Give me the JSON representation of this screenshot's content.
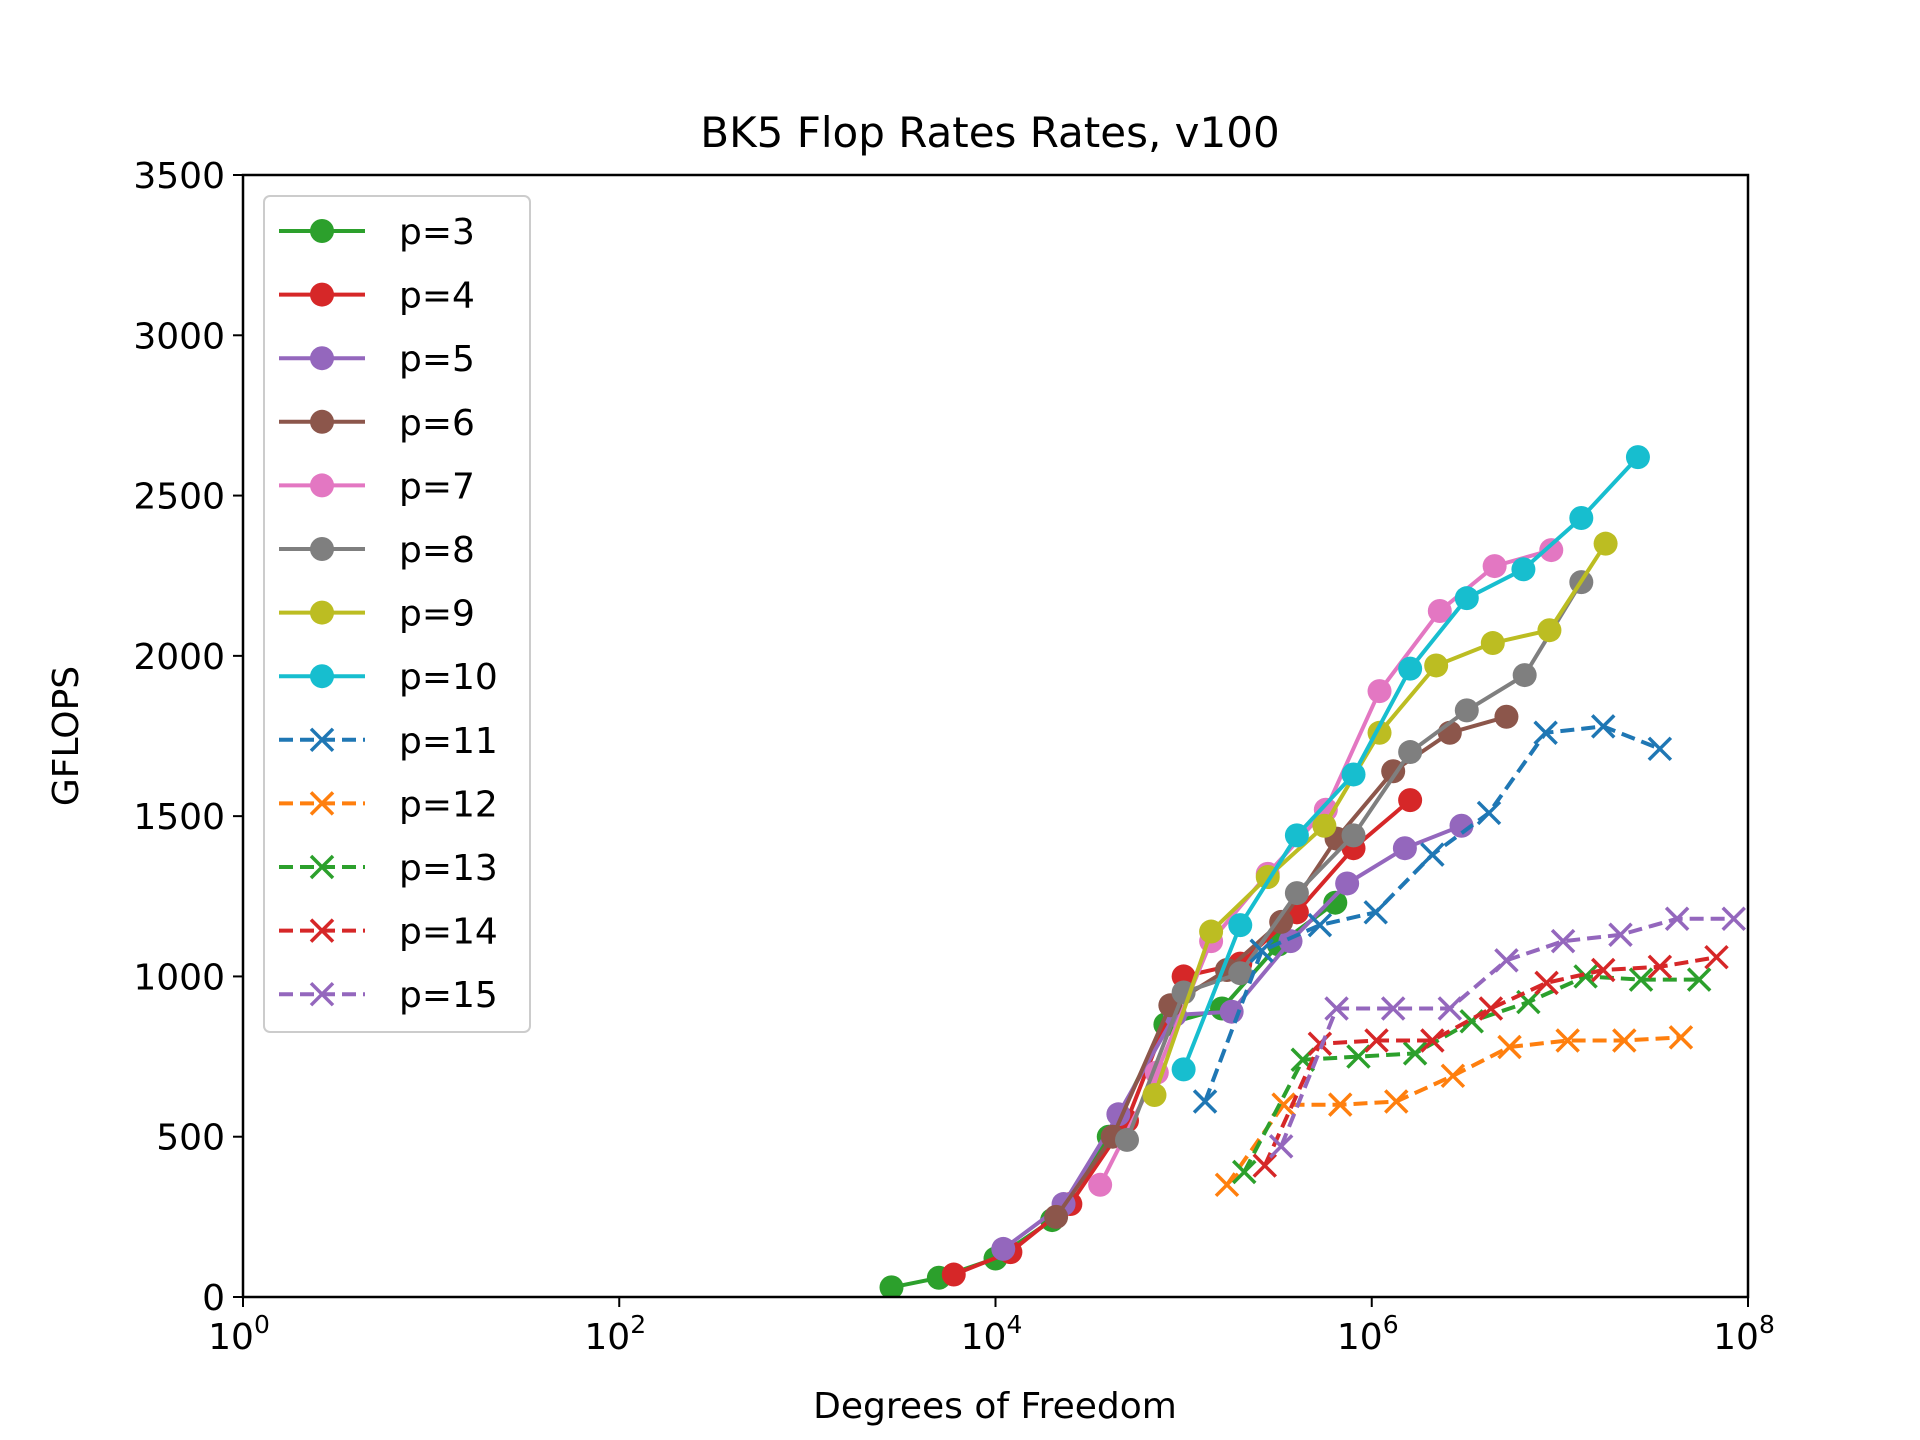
{
  "chart_data": {
    "type": "line",
    "title": "BK5 Flop Rates Rates, v100",
    "xlabel": "Degrees of Freedom",
    "ylabel": "GFLOPS",
    "xscale": "log",
    "xlim": [
      1,
      100000000
    ],
    "ylim": [
      0,
      3500
    ],
    "grid": false,
    "legend_position": "upper-left",
    "x_ticks": [
      {
        "base": "10",
        "exp": "0"
      },
      {
        "base": "10",
        "exp": "2"
      },
      {
        "base": "10",
        "exp": "4"
      },
      {
        "base": "10",
        "exp": "6"
      },
      {
        "base": "10",
        "exp": "8"
      }
    ],
    "y_ticks": [
      "0",
      "500",
      "1000",
      "1500",
      "2000",
      "2500",
      "3000",
      "3500"
    ],
    "series": [
      {
        "name": "p=3",
        "color": "#2ca02c",
        "marker": "circle",
        "linestyle": "solid",
        "x": [
          2800,
          5000,
          10000,
          20000,
          40000,
          80000,
          160000,
          320000,
          640000
        ],
        "y": [
          30,
          60,
          120,
          240,
          500,
          850,
          900,
          1100,
          1230
        ]
      },
      {
        "name": "p=4",
        "color": "#d62728",
        "marker": "circle",
        "linestyle": "solid",
        "x": [
          6000,
          12000,
          25000,
          50000,
          100000,
          200000,
          400000,
          800000,
          1600000
        ],
        "y": [
          70,
          140,
          290,
          550,
          1000,
          1040,
          1200,
          1400,
          1550
        ]
      },
      {
        "name": "p=5",
        "color": "#9467bd",
        "marker": "circle",
        "linestyle": "solid",
        "x": [
          11000,
          23000,
          45000,
          90000,
          180000,
          370000,
          740000,
          1500000,
          3000000
        ],
        "y": [
          150,
          290,
          570,
          880,
          890,
          1110,
          1290,
          1400,
          1470
        ]
      },
      {
        "name": "p=6",
        "color": "#8c564b",
        "marker": "circle",
        "linestyle": "solid",
        "x": [
          21000,
          42000,
          85000,
          170000,
          330000,
          650000,
          1300000,
          2600000,
          5200000
        ],
        "y": [
          250,
          500,
          910,
          1020,
          1170,
          1430,
          1640,
          1760,
          1810
        ]
      },
      {
        "name": "p=7",
        "color": "#e377c2",
        "marker": "circle",
        "linestyle": "solid",
        "x": [
          36000,
          72000,
          140000,
          280000,
          570000,
          1100000,
          2300000,
          4500000,
          9000000
        ],
        "y": [
          350,
          700,
          1110,
          1320,
          1520,
          1890,
          2140,
          2280,
          2330
        ]
      },
      {
        "name": "p=8",
        "color": "#7f7f7f",
        "marker": "circle",
        "linestyle": "solid",
        "x": [
          50000,
          100000,
          200000,
          400000,
          800000,
          1600000,
          3200000,
          6500000,
          13000000
        ],
        "y": [
          490,
          950,
          1010,
          1260,
          1440,
          1700,
          1830,
          1940,
          2230
        ]
      },
      {
        "name": "p=9",
        "color": "#bcbd22",
        "marker": "circle",
        "linestyle": "solid",
        "x": [
          70000,
          140000,
          280000,
          560000,
          1100000,
          2200000,
          4400000,
          8800000,
          17500000
        ],
        "y": [
          630,
          1140,
          1310,
          1470,
          1760,
          1970,
          2040,
          2080,
          2350
        ]
      },
      {
        "name": "p=10",
        "color": "#17becf",
        "marker": "circle",
        "linestyle": "solid",
        "x": [
          100000,
          200000,
          400000,
          800000,
          1600000,
          3200000,
          6400000,
          13000000,
          26000000
        ],
        "y": [
          710,
          1160,
          1440,
          1630,
          1960,
          2180,
          2270,
          2430,
          2620
        ]
      },
      {
        "name": "p=11",
        "color": "#1f77b4",
        "marker": "x",
        "linestyle": "dashed",
        "x": [
          130000,
          260000,
          530000,
          1050000,
          2100000,
          4200000,
          8400000,
          17000000,
          34000000
        ],
        "y": [
          610,
          1080,
          1160,
          1200,
          1380,
          1510,
          1760,
          1780,
          1710
        ]
      },
      {
        "name": "p=12",
        "color": "#ff7f0e",
        "marker": "x",
        "linestyle": "dashed",
        "x": [
          170000,
          340000,
          680000,
          1350000,
          2700000,
          5400000,
          11000000,
          22000000,
          44000000
        ],
        "y": [
          350,
          600,
          600,
          610,
          690,
          780,
          800,
          800,
          810
        ]
      },
      {
        "name": "p=13",
        "color": "#2ca02c",
        "marker": "x",
        "linestyle": "dashed",
        "x": [
          210000,
          430000,
          850000,
          1700000,
          3400000,
          6800000,
          13700000,
          27000000,
          55000000
        ],
        "y": [
          390,
          740,
          750,
          760,
          860,
          920,
          1000,
          990,
          990
        ]
      },
      {
        "name": "p=14",
        "color": "#d62728",
        "marker": "x",
        "linestyle": "dashed",
        "x": [
          270000,
          530000,
          1060000,
          2100000,
          4300000,
          8500000,
          17000000,
          34000000,
          68000000
        ],
        "y": [
          410,
          790,
          800,
          800,
          900,
          980,
          1020,
          1030,
          1060
        ]
      },
      {
        "name": "p=15",
        "color": "#9467bd",
        "marker": "x",
        "linestyle": "dashed",
        "x": [
          330000,
          650000,
          1300000,
          2600000,
          5200000,
          10400000,
          21000000,
          42000000,
          84000000
        ],
        "y": [
          470,
          900,
          900,
          900,
          1050,
          1110,
          1130,
          1180,
          1180
        ]
      }
    ]
  }
}
